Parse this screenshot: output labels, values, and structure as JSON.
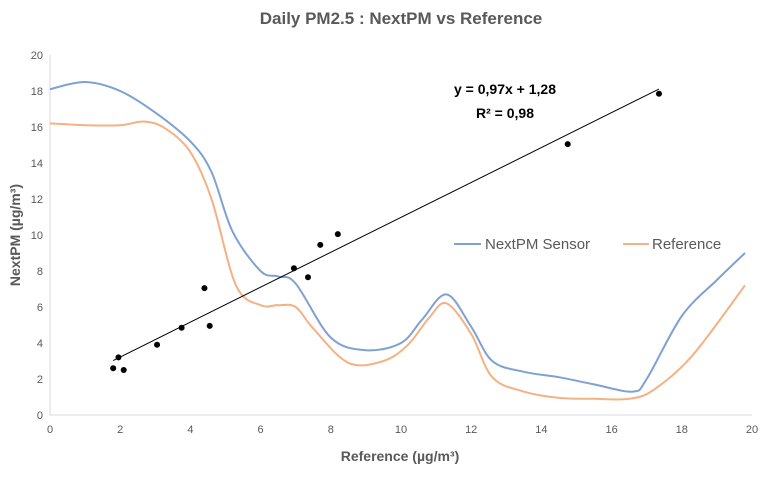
{
  "chart_data": {
    "type": "line+scatter",
    "title": "Daily PM2.5 : NextPM vs Reference",
    "xlabel": "Reference (µg/m³)",
    "ylabel": "NextPM (µg/m³)",
    "xlim": [
      0,
      20
    ],
    "ylim": [
      0,
      20
    ],
    "x_ticks": [
      0,
      2,
      4,
      6,
      8,
      10,
      12,
      14,
      16,
      18,
      20
    ],
    "y_ticks": [
      0,
      2,
      4,
      6,
      8,
      10,
      12,
      14,
      16,
      18,
      20
    ],
    "grid": false,
    "series": [
      {
        "name": "NextPM Sensor",
        "type": "line",
        "color": "#7ea1d4",
        "x": [
          0,
          1,
          2,
          3,
          4,
          4.6,
          5.2,
          6,
          6.5,
          7,
          8,
          9,
          10,
          10.6,
          11.3,
          12,
          12.6,
          13.5,
          14.5,
          15.5,
          16.6,
          17,
          18,
          19,
          19.8
        ],
        "y": [
          18.1,
          18.5,
          18.0,
          16.8,
          15.2,
          13.5,
          10.2,
          8.0,
          7.7,
          7.3,
          4.3,
          3.6,
          4.0,
          5.3,
          6.7,
          4.9,
          3.0,
          2.4,
          2.1,
          1.7,
          1.3,
          2.0,
          5.5,
          7.5,
          9.0
        ]
      },
      {
        "name": "Reference",
        "type": "line",
        "color": "#f4b183",
        "x": [
          0,
          1,
          2,
          2.7,
          3.3,
          4,
          4.6,
          5.3,
          6,
          6.5,
          7,
          7.5,
          8.5,
          9.5,
          10.2,
          10.8,
          11.3,
          12,
          12.6,
          13.5,
          14.5,
          15.5,
          16.5,
          17.2,
          18.3,
          19.8
        ],
        "y": [
          16.2,
          16.1,
          16.1,
          16.3,
          15.9,
          14.6,
          12.0,
          7.2,
          6.1,
          6.1,
          6.0,
          4.8,
          2.9,
          3.0,
          3.9,
          5.4,
          6.2,
          4.5,
          2.1,
          1.3,
          0.95,
          0.9,
          0.9,
          1.4,
          3.3,
          7.2
        ]
      }
    ],
    "scatter": {
      "name": "Daily points",
      "color": "#000000",
      "points": [
        [
          1.8,
          2.6
        ],
        [
          1.95,
          3.2
        ],
        [
          2.1,
          2.5
        ],
        [
          3.05,
          3.9
        ],
        [
          3.75,
          4.85
        ],
        [
          4.4,
          7.05
        ],
        [
          4.55,
          4.95
        ],
        [
          6.95,
          8.15
        ],
        [
          7.35,
          7.65
        ],
        [
          7.7,
          9.45
        ],
        [
          8.2,
          10.05
        ],
        [
          14.75,
          15.05
        ],
        [
          17.35,
          17.85
        ]
      ]
    },
    "trendline": {
      "slope": 0.97,
      "intercept": 1.28,
      "x_range": [
        1.8,
        17.35
      ],
      "color": "#000000",
      "equation": "y = 0,97x + 1,28",
      "r2": "R² = 0,98"
    },
    "legend": {
      "position": "right",
      "entries": [
        "NextPM Sensor",
        "Reference"
      ]
    }
  }
}
